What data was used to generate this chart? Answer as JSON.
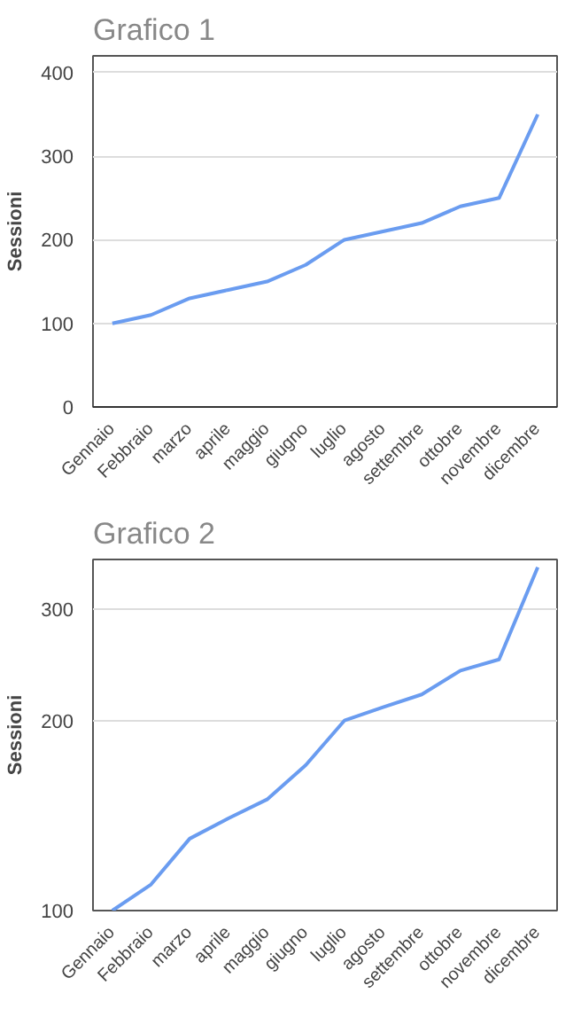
{
  "chart_data": [
    {
      "type": "line",
      "title": "Grafico 1",
      "ylabel": "Sessioni",
      "categories": [
        "Gennaio",
        "Febbraio",
        "marzo",
        "aprile",
        "maggio",
        "giugno",
        "luglio",
        "agosto",
        "settembre",
        "ottobre",
        "novembre",
        "dicembre"
      ],
      "series": [
        {
          "color": "#6a9cf0",
          "values": [
            100,
            110,
            130,
            140,
            150,
            170,
            200,
            210,
            220,
            240,
            250,
            350
          ]
        }
      ],
      "ylim": [
        0,
        420
      ],
      "yticks": [
        0,
        100,
        200,
        300,
        400
      ],
      "grid": "y"
    },
    {
      "type": "line",
      "title": "Grafico 2",
      "ylabel": "Sessioni",
      "categories": [
        "Gennaio",
        "Febbraio",
        "marzo",
        "aprile",
        "maggio",
        "giugno",
        "luglio",
        "agosto",
        "settembre",
        "ottobre",
        "novembre",
        "dicembre"
      ],
      "series": [
        {
          "color": "#6a9cf0",
          "values": [
            100,
            110,
            130,
            140,
            150,
            170,
            200,
            210,
            220,
            240,
            250,
            350
          ]
        }
      ],
      "ylim": [
        100,
        360
      ],
      "yticks": [
        100,
        200,
        300
      ],
      "grid": "y",
      "log": "y"
    }
  ]
}
